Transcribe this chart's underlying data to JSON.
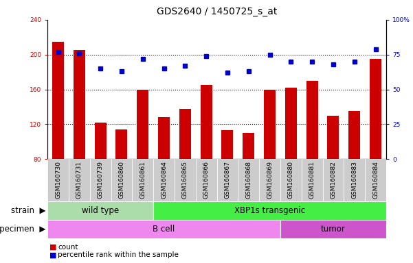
{
  "title": "GDS2640 / 1450725_s_at",
  "samples": [
    "GSM160730",
    "GSM160731",
    "GSM160739",
    "GSM160860",
    "GSM160861",
    "GSM160864",
    "GSM160865",
    "GSM160866",
    "GSM160867",
    "GSM160868",
    "GSM160869",
    "GSM160880",
    "GSM160881",
    "GSM160882",
    "GSM160883",
    "GSM160884"
  ],
  "counts": [
    215,
    205,
    122,
    114,
    160,
    128,
    138,
    165,
    113,
    110,
    160,
    162,
    170,
    130,
    135,
    195
  ],
  "percentiles": [
    77,
    76,
    65,
    63,
    72,
    65,
    67,
    74,
    62,
    63,
    75,
    70,
    70,
    68,
    70,
    79
  ],
  "ylim_left": [
    80,
    240
  ],
  "ylim_right": [
    0,
    100
  ],
  "yticks_left": [
    80,
    120,
    160,
    200,
    240
  ],
  "yticks_right": [
    0,
    25,
    50,
    75,
    100
  ],
  "bar_color": "#cc0000",
  "dot_color": "#0000cc",
  "bg_color": "#ffffff",
  "tick_bg_color": "#cccccc",
  "strain_groups": [
    {
      "label": "wild type",
      "start": 0,
      "end": 5,
      "color": "#aaddaa"
    },
    {
      "label": "XBP1s transgenic",
      "start": 5,
      "end": 16,
      "color": "#44ee44"
    }
  ],
  "specimen_groups": [
    {
      "label": "B cell",
      "start": 0,
      "end": 11,
      "color": "#ee88ee"
    },
    {
      "label": "tumor",
      "start": 11,
      "end": 16,
      "color": "#cc55cc"
    }
  ],
  "legend_items": [
    {
      "label": "count",
      "color": "#cc0000"
    },
    {
      "label": "percentile rank within the sample",
      "color": "#0000cc"
    }
  ],
  "label_strain": "strain",
  "label_specimen": "specimen",
  "title_fontsize": 10,
  "tick_fontsize": 6.5,
  "label_fontsize": 8.5,
  "group_fontsize": 8.5
}
